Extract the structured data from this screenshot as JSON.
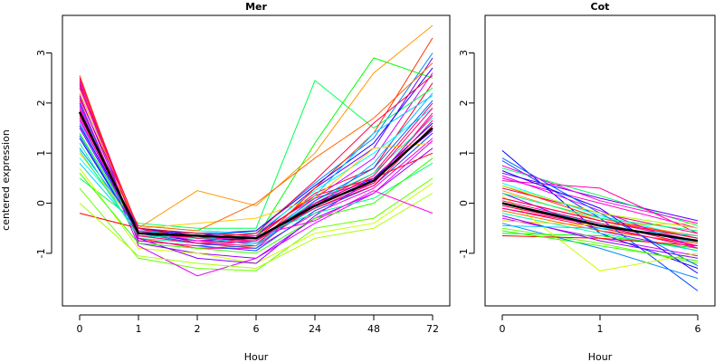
{
  "chart_data": [
    {
      "type": "line",
      "title": "Mer",
      "xlabel": "Hour",
      "ylabel": "centered expression",
      "categories": [
        "0",
        "1",
        "2",
        "6",
        "24",
        "48",
        "72"
      ],
      "ylim": [
        -2.05,
        3.75
      ],
      "yticks": [
        -1,
        0,
        1,
        2,
        3
      ],
      "grid": false,
      "mean_line": {
        "color": "#000000",
        "values": [
          1.82,
          -0.6,
          -0.65,
          -0.7,
          -0.05,
          0.45,
          1.5
        ]
      },
      "series": [
        {
          "color": "#ff0066",
          "values": [
            2.5,
            -0.6,
            -0.75,
            -0.8,
            0.0,
            0.6,
            2.0
          ]
        },
        {
          "color": "#ff0099",
          "values": [
            2.3,
            -0.55,
            -0.7,
            -0.75,
            -0.1,
            0.4,
            1.8
          ]
        },
        {
          "color": "#ff0033",
          "values": [
            2.1,
            -0.5,
            -0.8,
            -0.7,
            0.2,
            0.7,
            2.4
          ]
        },
        {
          "color": "#ff00cc",
          "values": [
            1.9,
            -0.7,
            -0.9,
            -0.9,
            -0.2,
            0.3,
            1.3
          ]
        },
        {
          "color": "#cc00ff",
          "values": [
            1.7,
            -0.65,
            -0.7,
            -0.6,
            0.1,
            0.9,
            2.6
          ]
        },
        {
          "color": "#9900ff",
          "values": [
            2.4,
            -0.8,
            -1.0,
            -1.1,
            -0.3,
            0.2,
            1.1
          ]
        },
        {
          "color": "#6600ff",
          "values": [
            1.5,
            -0.55,
            -0.6,
            -0.65,
            0.3,
            1.1,
            2.9
          ]
        },
        {
          "color": "#0000ff",
          "values": [
            1.3,
            -0.6,
            -0.75,
            -0.7,
            0.0,
            0.5,
            1.6
          ]
        },
        {
          "color": "#0044ff",
          "values": [
            2.0,
            -0.75,
            -0.85,
            -0.95,
            -0.15,
            0.35,
            1.4
          ]
        },
        {
          "color": "#0088ff",
          "values": [
            1.1,
            -0.5,
            -0.6,
            -0.55,
            0.4,
            1.3,
            3.0
          ]
        },
        {
          "color": "#00bbff",
          "values": [
            1.6,
            -0.6,
            -0.7,
            -0.8,
            -0.1,
            0.8,
            2.2
          ]
        },
        {
          "color": "#00ffff",
          "values": [
            0.9,
            -0.45,
            -0.55,
            -0.6,
            0.25,
            1.0,
            1.9
          ]
        },
        {
          "color": "#00ffaa",
          "values": [
            1.2,
            -0.7,
            -0.8,
            -0.75,
            0.05,
            0.6,
            1.7
          ]
        },
        {
          "color": "#00ff55",
          "values": [
            0.5,
            -0.4,
            -0.5,
            -0.5,
            2.45,
            1.5,
            2.3
          ]
        },
        {
          "color": "#00ff00",
          "values": [
            1.4,
            -0.55,
            -0.65,
            -0.7,
            1.2,
            2.9,
            2.5
          ]
        },
        {
          "color": "#66ff00",
          "values": [
            0.3,
            -1.1,
            -1.3,
            -1.35,
            -0.5,
            -0.3,
            0.5
          ]
        },
        {
          "color": "#ccff00",
          "values": [
            0.7,
            -0.9,
            -1.0,
            -1.2,
            -0.6,
            -0.4,
            0.4
          ]
        },
        {
          "color": "#ffcc00",
          "values": [
            1.0,
            -0.5,
            -0.4,
            -0.3,
            0.1,
            1.1,
            1.2
          ]
        },
        {
          "color": "#ff9900",
          "values": [
            2.2,
            -0.5,
            0.25,
            -0.05,
            1.0,
            2.6,
            3.55
          ]
        },
        {
          "color": "#ff6600",
          "values": [
            1.8,
            -0.45,
            -0.55,
            0.0,
            0.9,
            1.7,
            2.8
          ]
        },
        {
          "color": "#ff3300",
          "values": [
            2.55,
            -0.7,
            -0.9,
            -0.85,
            0.3,
            1.4,
            3.3
          ]
        },
        {
          "color": "#ff0000",
          "values": [
            -0.2,
            -0.5,
            -0.6,
            -0.65,
            0.15,
            0.5,
            1.0
          ]
        },
        {
          "color": "#ff0077",
          "values": [
            2.45,
            -0.65,
            -0.8,
            -0.85,
            -0.05,
            0.55,
            1.9
          ]
        },
        {
          "color": "#ff00aa",
          "values": [
            2.05,
            -0.75,
            -0.85,
            -0.75,
            0.1,
            0.45,
            1.75
          ]
        },
        {
          "color": "#ff0055",
          "values": [
            1.75,
            -0.6,
            -0.7,
            -0.7,
            -0.1,
            0.35,
            1.55
          ]
        },
        {
          "color": "#dd00ff",
          "values": [
            1.95,
            -0.85,
            -1.45,
            -1.1,
            -0.4,
            0.2,
            1.25
          ]
        },
        {
          "color": "#8800ff",
          "values": [
            2.15,
            -0.7,
            -1.1,
            -1.2,
            -0.25,
            0.5,
            1.45
          ]
        },
        {
          "color": "#2200ff",
          "values": [
            1.55,
            -0.5,
            -0.65,
            -0.55,
            0.35,
            1.2,
            2.7
          ]
        },
        {
          "color": "#0066ff",
          "values": [
            1.35,
            -0.6,
            -0.8,
            -0.9,
            0.05,
            0.7,
            2.05
          ]
        },
        {
          "color": "#00ccff",
          "values": [
            0.8,
            -0.55,
            -0.65,
            -0.85,
            0.15,
            1.4,
            2.15
          ]
        },
        {
          "color": "#00ff88",
          "values": [
            1.05,
            -0.65,
            -0.7,
            -0.65,
            -0.2,
            0.1,
            0.8
          ]
        },
        {
          "color": "#33ff00",
          "values": [
            0.6,
            -0.8,
            -0.9,
            -1.0,
            -0.3,
            0.0,
            0.9
          ]
        },
        {
          "color": "#aaff00",
          "values": [
            0.0,
            -1.05,
            -1.2,
            -1.3,
            -0.7,
            -0.5,
            0.2
          ]
        },
        {
          "color": "#ff00ee",
          "values": [
            1.65,
            -0.55,
            -0.75,
            -0.65,
            -0.35,
            0.25,
            -0.2
          ]
        },
        {
          "color": "#ff0044",
          "values": [
            2.35,
            -0.5,
            -0.7,
            -0.6,
            0.45,
            1.6,
            2.55
          ]
        },
        {
          "color": "#ff0088",
          "values": [
            1.85,
            -0.65,
            -0.8,
            -0.75,
            0.0,
            0.4,
            1.65
          ]
        }
      ]
    },
    {
      "type": "line",
      "title": "Cot",
      "xlabel": "Hour",
      "ylabel": "",
      "categories": [
        "0",
        "1",
        "6"
      ],
      "ylim": [
        -2.05,
        3.75
      ],
      "yticks": [
        -1,
        0,
        1,
        2,
        3
      ],
      "grid": false,
      "mean_line": {
        "color": "#000000",
        "values": [
          0.0,
          -0.45,
          -0.75
        ]
      },
      "series": [
        {
          "color": "#ff0066",
          "values": [
            0.3,
            -0.2,
            -0.6
          ]
        },
        {
          "color": "#ff0099",
          "values": [
            0.1,
            -0.35,
            -0.75
          ]
        },
        {
          "color": "#ff0033",
          "values": [
            -0.1,
            -0.5,
            -0.85
          ]
        },
        {
          "color": "#ff00cc",
          "values": [
            0.5,
            0.0,
            -0.5
          ]
        },
        {
          "color": "#cc00ff",
          "values": [
            -0.3,
            -0.7,
            -1.05
          ]
        },
        {
          "color": "#9900ff",
          "values": [
            0.2,
            -0.55,
            -0.95
          ]
        },
        {
          "color": "#6600ff",
          "values": [
            0.6,
            0.1,
            -0.35
          ]
        },
        {
          "color": "#0000ff",
          "values": [
            1.05,
            -0.6,
            -1.3
          ]
        },
        {
          "color": "#0044ff",
          "values": [
            0.85,
            -0.3,
            -1.75
          ]
        },
        {
          "color": "#0088ff",
          "values": [
            -0.4,
            -0.9,
            -1.5
          ]
        },
        {
          "color": "#00bbff",
          "values": [
            0.0,
            -0.4,
            -0.8
          ]
        },
        {
          "color": "#00ffff",
          "values": [
            0.4,
            -0.25,
            -0.7
          ]
        },
        {
          "color": "#00ffaa",
          "values": [
            -0.2,
            -0.6,
            -0.95
          ]
        },
        {
          "color": "#00ff55",
          "values": [
            0.7,
            0.15,
            -0.45
          ]
        },
        {
          "color": "#00ff00",
          "values": [
            -0.6,
            -0.65,
            -0.9
          ]
        },
        {
          "color": "#66ff00",
          "values": [
            -0.5,
            -0.8,
            -1.2
          ]
        },
        {
          "color": "#ccff00",
          "values": [
            0.15,
            -1.35,
            -1.0
          ]
        },
        {
          "color": "#ffcc00",
          "values": [
            -0.35,
            -0.45,
            -0.4
          ]
        },
        {
          "color": "#ff9900",
          "values": [
            0.25,
            -0.35,
            -0.65
          ]
        },
        {
          "color": "#ff6600",
          "values": [
            -0.15,
            -0.55,
            -0.8
          ]
        },
        {
          "color": "#ff3300",
          "values": [
            0.35,
            -0.3,
            -0.7
          ]
        },
        {
          "color": "#ff0000",
          "values": [
            -0.65,
            -0.7,
            -0.85
          ]
        },
        {
          "color": "#ff0077",
          "values": [
            0.05,
            -0.4,
            -0.85
          ]
        },
        {
          "color": "#ff00aa",
          "values": [
            0.45,
            0.3,
            -0.6
          ]
        },
        {
          "color": "#ff0055",
          "values": [
            -0.05,
            -0.45,
            -0.75
          ]
        },
        {
          "color": "#dd00ff",
          "values": [
            0.55,
            -0.15,
            -0.9
          ]
        },
        {
          "color": "#8800ff",
          "values": [
            -0.25,
            -0.75,
            -1.1
          ]
        },
        {
          "color": "#2200ff",
          "values": [
            0.65,
            -0.1,
            -1.4
          ]
        },
        {
          "color": "#0066ff",
          "values": [
            0.9,
            -0.2,
            -1.25
          ]
        },
        {
          "color": "#00ccff",
          "values": [
            -0.45,
            -0.5,
            -0.65
          ]
        },
        {
          "color": "#00ff88",
          "values": [
            0.2,
            -0.3,
            -0.55
          ]
        },
        {
          "color": "#33ff00",
          "values": [
            -0.55,
            -0.85,
            -1.15
          ]
        },
        {
          "color": "#aaff00",
          "values": [
            0.35,
            -0.2,
            -0.5
          ]
        },
        {
          "color": "#ff00ee",
          "values": [
            0.75,
            0.05,
            -0.4
          ]
        },
        {
          "color": "#ff0044",
          "values": [
            0.1,
            -0.35,
            -0.7
          ]
        },
        {
          "color": "#ff0088",
          "values": [
            -0.1,
            -0.45,
            -0.9
          ]
        }
      ]
    }
  ]
}
